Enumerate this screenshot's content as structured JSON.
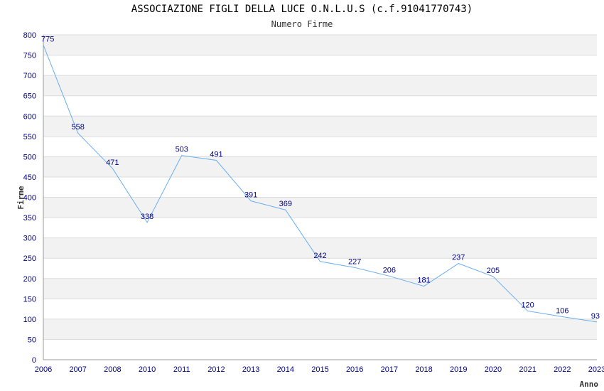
{
  "chart_data": {
    "type": "line",
    "title": "ASSOCIAZIONE FIGLI DELLA LUCE O.N.L.U.S (c.f.91041770743)",
    "subtitle": "Numero Firme",
    "xlabel": "Anno",
    "ylabel": "Firme",
    "ylim": [
      0,
      800
    ],
    "yticks": [
      "0",
      "50",
      "100",
      "150",
      "200",
      "250",
      "300",
      "350",
      "400",
      "450",
      "500",
      "550",
      "600",
      "650",
      "700",
      "750",
      "800"
    ],
    "categories": [
      "2006",
      "2007",
      "2008",
      "2010",
      "2011",
      "2012",
      "2013",
      "2014",
      "2015",
      "2016",
      "2017",
      "2018",
      "2019",
      "2020",
      "2021",
      "2022",
      "2023"
    ],
    "values": [
      775,
      558,
      471,
      338,
      503,
      491,
      391,
      369,
      242,
      227,
      206,
      181,
      237,
      205,
      120,
      106,
      93
    ],
    "line_color": "#6aaeed",
    "grid": true
  }
}
